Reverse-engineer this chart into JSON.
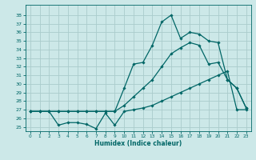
{
  "xlabel": "Humidex (Indice chaleur)",
  "bg_color": "#cce8e8",
  "grid_color": "#aacccc",
  "line_color": "#006666",
  "xlim": [
    -0.5,
    23.5
  ],
  "ylim": [
    24.5,
    39.2
  ],
  "xticks": [
    0,
    1,
    2,
    3,
    4,
    5,
    6,
    7,
    8,
    9,
    10,
    11,
    12,
    13,
    14,
    15,
    16,
    17,
    18,
    19,
    20,
    21,
    22,
    23
  ],
  "yticks": [
    25,
    26,
    27,
    28,
    29,
    30,
    31,
    32,
    33,
    34,
    35,
    36,
    37,
    38
  ],
  "series_min_x": [
    0,
    1,
    2,
    3,
    4,
    5,
    6,
    7,
    8,
    9,
    10,
    11,
    12,
    13,
    14,
    15,
    16,
    17,
    18,
    19,
    20,
    21,
    22,
    23
  ],
  "series_min_y": [
    26.8,
    26.8,
    26.8,
    25.2,
    25.5,
    25.5,
    25.3,
    24.8,
    26.6,
    25.2,
    26.8,
    27.0,
    27.2,
    27.5,
    28.0,
    28.5,
    29.0,
    29.5,
    30.0,
    30.5,
    31.0,
    31.5,
    27.0,
    27.0
  ],
  "series_max_x": [
    0,
    1,
    2,
    3,
    4,
    5,
    6,
    7,
    8,
    9,
    10,
    11,
    12,
    13,
    14,
    15,
    16,
    17,
    18,
    19,
    20,
    21,
    22,
    23
  ],
  "series_max_y": [
    26.8,
    26.8,
    26.8,
    26.8,
    26.8,
    26.8,
    26.8,
    26.8,
    26.8,
    26.8,
    29.5,
    32.3,
    32.5,
    34.5,
    37.2,
    38.0,
    35.3,
    36.0,
    35.8,
    35.0,
    34.8,
    30.5,
    29.5,
    27.2
  ],
  "series_mean_x": [
    0,
    1,
    2,
    3,
    4,
    5,
    6,
    7,
    8,
    9,
    10,
    11,
    12,
    13,
    14,
    15,
    16,
    17,
    18,
    19,
    20,
    21,
    22,
    23
  ],
  "series_mean_y": [
    26.8,
    26.8,
    26.8,
    26.8,
    26.8,
    26.8,
    26.8,
    26.8,
    26.8,
    26.8,
    27.5,
    28.5,
    29.5,
    30.5,
    32.0,
    33.5,
    34.2,
    34.8,
    34.5,
    32.3,
    32.5,
    30.5,
    29.5,
    27.2
  ]
}
